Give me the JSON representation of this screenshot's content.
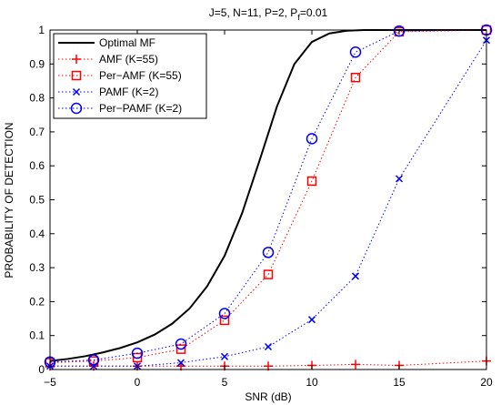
{
  "chart_data": {
    "type": "line",
    "title": {
      "main": "J=5, N=11, P=2, P",
      "sub": "f",
      "tail": "=0.01"
    },
    "xlabel": "SNR (dB)",
    "ylabel": "PROBABILITY OF DETECTION",
    "xlim": [
      -5,
      20
    ],
    "ylim": [
      0,
      1
    ],
    "xticks": [
      -5,
      0,
      5,
      10,
      15,
      20
    ],
    "yticks": [
      0,
      0.1,
      0.2,
      0.3,
      0.4,
      0.5,
      0.6,
      0.7,
      0.8,
      0.9,
      1
    ],
    "xtick_labels": [
      "−5",
      "0",
      "5",
      "10",
      "15",
      "20"
    ],
    "ytick_labels": [
      "0",
      "0.1",
      "0.2",
      "0.3",
      "0.4",
      "0.5",
      "0.6",
      "0.7",
      "0.8",
      "0.9",
      "1"
    ],
    "grid": false,
    "legend_position": "top-left",
    "series": [
      {
        "name": "Optimal MF",
        "color": "#000000",
        "line": "solid",
        "marker": "none",
        "x": [
          -5,
          -4,
          -3,
          -2,
          -1,
          0,
          1,
          2,
          3,
          4,
          5,
          6,
          7,
          8,
          9,
          10,
          11,
          12,
          13,
          14,
          15,
          16,
          17,
          18,
          19,
          20
        ],
        "y": [
          0.025,
          0.031,
          0.039,
          0.05,
          0.063,
          0.08,
          0.103,
          0.135,
          0.18,
          0.245,
          0.335,
          0.46,
          0.615,
          0.775,
          0.9,
          0.965,
          0.99,
          0.998,
          1,
          1,
          1,
          1,
          1,
          1,
          1,
          1
        ]
      },
      {
        "name": "AMF (K=55)",
        "color": "#ff0000",
        "line": "dotted",
        "marker": "plus",
        "x": [
          -5,
          -2.5,
          0,
          2.5,
          5,
          7.5,
          10,
          12.5,
          15,
          20
        ],
        "y": [
          0.01,
          0.01,
          0.01,
          0.01,
          0.01,
          0.01,
          0.012,
          0.015,
          0.012,
          0.025
        ]
      },
      {
        "name": "Per−AMF (K=55)",
        "color": "#ff0000",
        "line": "dotted",
        "marker": "square",
        "x": [
          -5,
          -2.5,
          0,
          2.5,
          5,
          7.5,
          10,
          12.5,
          15,
          20
        ],
        "y": [
          0.02,
          0.025,
          0.035,
          0.06,
          0.145,
          0.28,
          0.555,
          0.86,
          0.995,
          1
        ]
      },
      {
        "name": "PAMF (K=2)",
        "color": "#0000ff",
        "line": "dotted",
        "marker": "x",
        "x": [
          -5,
          -2.5,
          0,
          2.5,
          5,
          7.5,
          10,
          12.5,
          15,
          20
        ],
        "y": [
          0.01,
          0.01,
          0.01,
          0.02,
          0.038,
          0.067,
          0.147,
          0.275,
          0.562,
          0.97
        ]
      },
      {
        "name": "Per−PAMF (K=2)",
        "color": "#0000ff",
        "line": "dotted",
        "marker": "circle",
        "x": [
          -5,
          -2.5,
          0,
          2.5,
          5,
          7.5,
          10,
          12.5,
          15,
          20
        ],
        "y": [
          0.022,
          0.028,
          0.048,
          0.075,
          0.165,
          0.345,
          0.68,
          0.935,
          0.997,
          1
        ]
      }
    ]
  }
}
